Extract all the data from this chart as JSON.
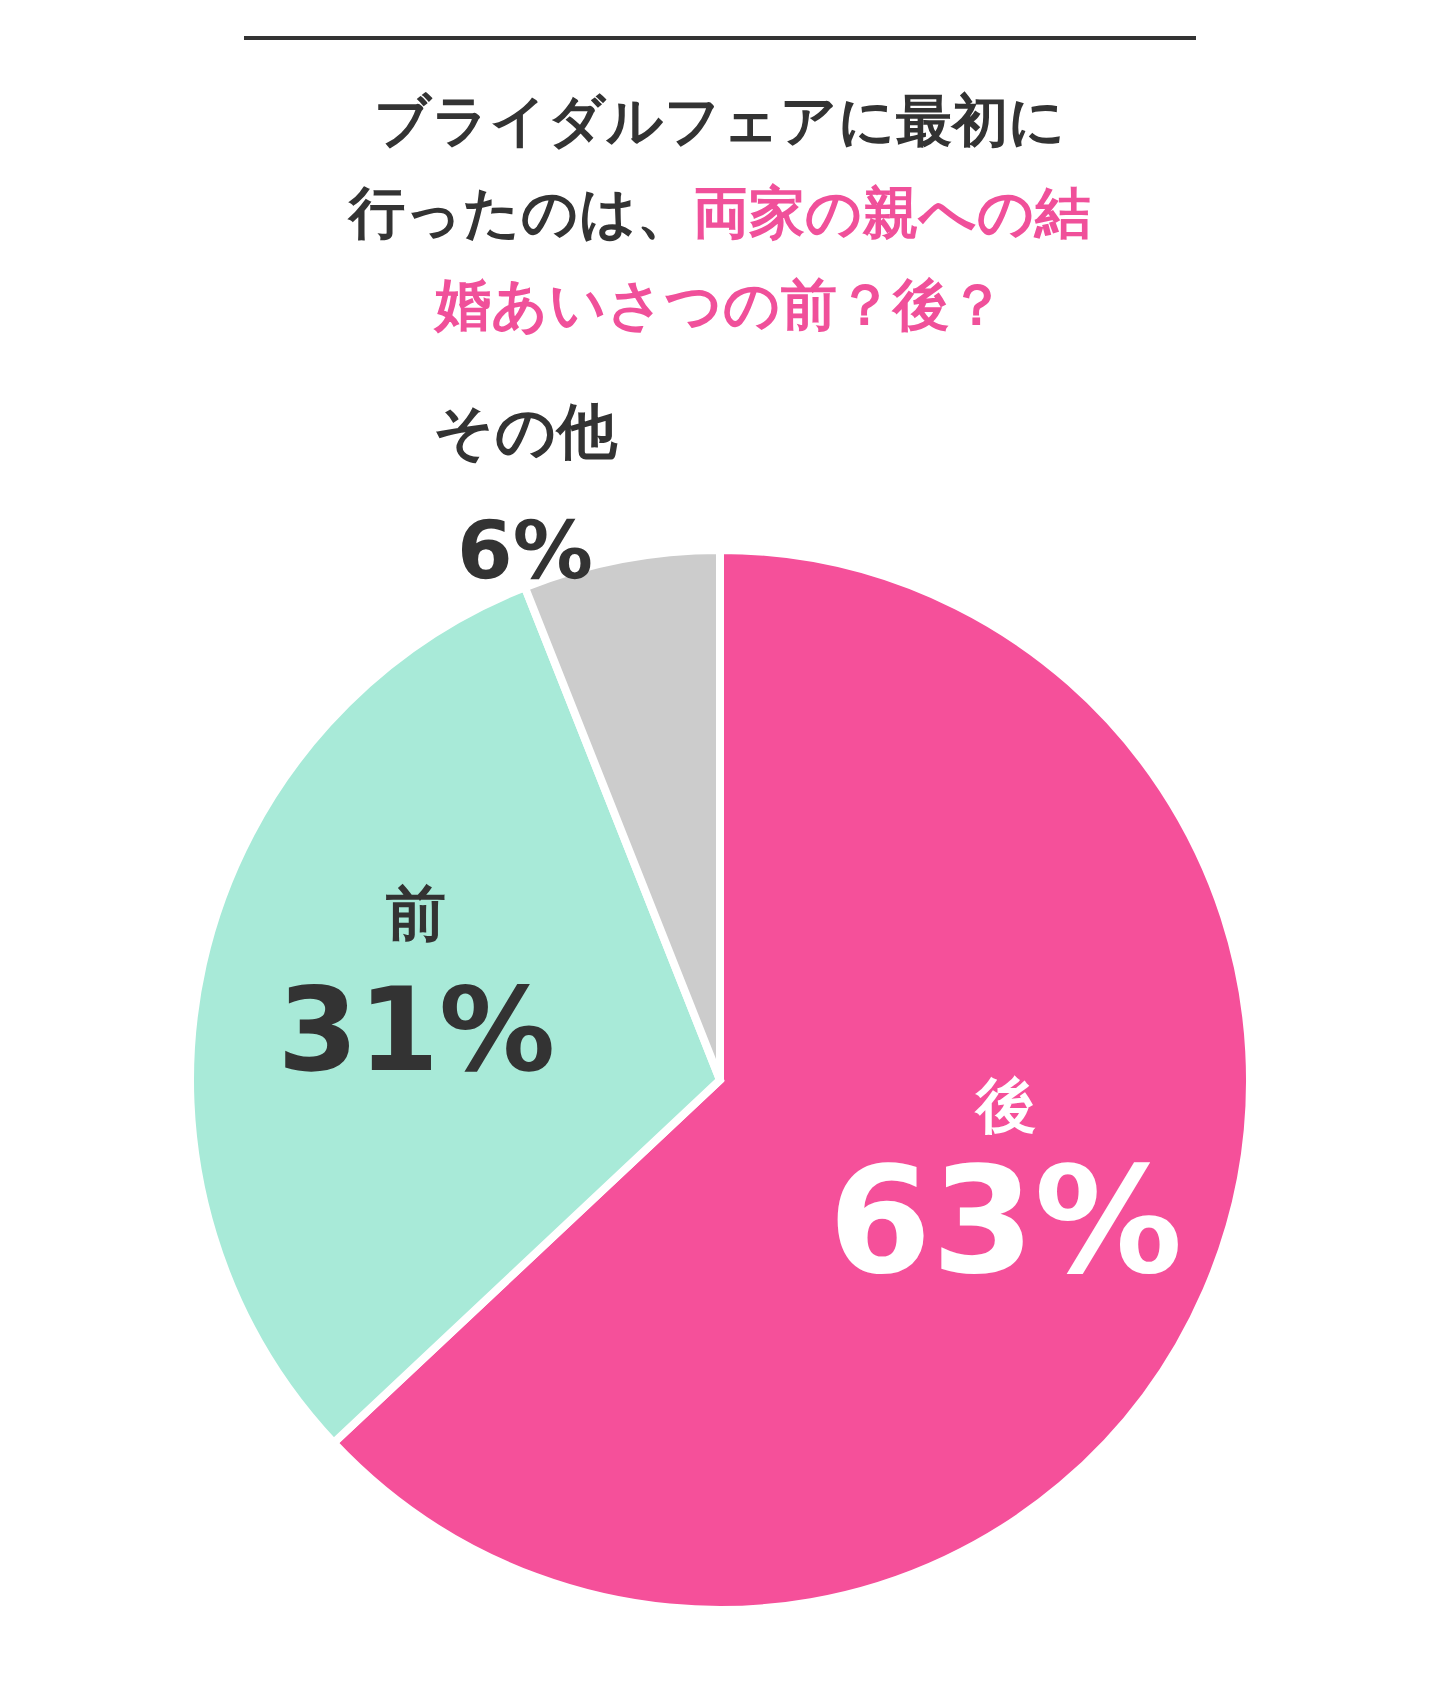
{
  "chart_data": {
    "type": "pie",
    "title": "ブライダルフェアに最初に行ったのは、",
    "subtitle": "両家の親への結婚あいさつの前？後？",
    "categories": [
      "後",
      "前",
      "その他"
    ],
    "values": [
      63,
      31,
      6
    ],
    "value_labels": [
      "63%",
      "31%",
      "6%"
    ],
    "colors": [
      "#f5509a",
      "#a8ead8",
      "#cccccc"
    ]
  }
}
